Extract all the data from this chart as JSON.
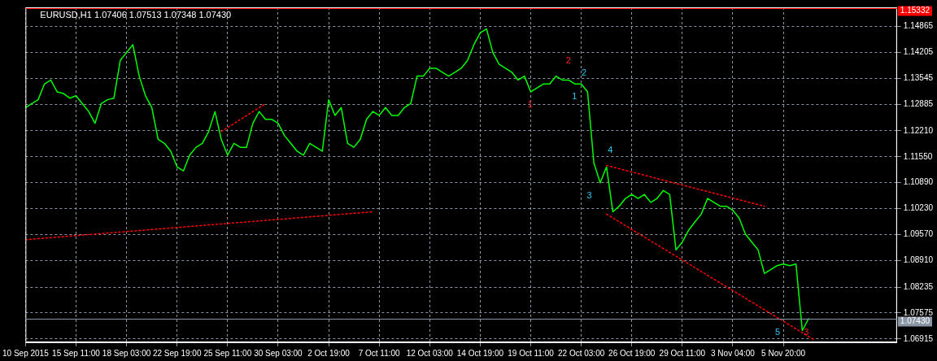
{
  "chart_data": {
    "type": "line",
    "title": "EURUSD,H1 1.07406 1.07513 1.07348 1.07430",
    "categories": [
      "10 Sep 2015",
      null,
      null,
      null,
      null,
      null,
      null,
      null,
      "15 Sep 11:00",
      null,
      null,
      null,
      null,
      null,
      null,
      null,
      "18 Sep 03:00",
      null,
      null,
      null,
      null,
      null,
      null,
      null,
      "22 Sep 19:00",
      null,
      null,
      null,
      null,
      null,
      null,
      null,
      "25 Sep 11:00",
      null,
      null,
      null,
      null,
      null,
      null,
      null,
      "30 Sep 03:00",
      null,
      null,
      null,
      null,
      null,
      null,
      null,
      "2 Oct 19:00",
      null,
      null,
      null,
      null,
      null,
      null,
      null,
      "7 Oct 11:00",
      null,
      null,
      null,
      null,
      null,
      null,
      null,
      "12 Oct 03:00",
      null,
      null,
      null,
      null,
      null,
      null,
      null,
      "14 Oct 19:00",
      null,
      null,
      null,
      null,
      null,
      null,
      null,
      "19 Oct 11:00",
      null,
      null,
      null,
      null,
      null,
      null,
      null,
      "22 Oct 03:00",
      null,
      null,
      null,
      null,
      null,
      null,
      null,
      "26 Oct 19:00",
      null,
      null,
      null,
      null,
      null,
      null,
      null,
      "29 Oct 11:00",
      null,
      null,
      null,
      null,
      null,
      null,
      null,
      "3 Nov 04:00",
      null,
      null,
      null,
      null,
      null,
      null,
      null,
      "5 Nov 20:00",
      null,
      null,
      null,
      null,
      null,
      null,
      null,
      null,
      null,
      null,
      null,
      null,
      null,
      null,
      null,
      null,
      null,
      null
    ],
    "series": [
      {
        "type": "line",
        "color": "#00ff00",
        "line_style": "solid",
        "values": [
          1.128,
          1.129,
          1.13,
          1.134,
          1.135,
          1.132,
          1.1316,
          1.1304,
          1.131,
          1.129,
          1.127,
          1.124,
          1.129,
          1.13,
          1.1304,
          1.14,
          1.142,
          1.144,
          1.136,
          1.131,
          1.128,
          1.1199,
          1.1189,
          1.1169,
          1.1129,
          1.1119,
          1.1159,
          1.1179,
          1.1189,
          1.1219,
          1.127,
          1.1199,
          1.1159,
          1.1189,
          1.1179,
          1.1179,
          1.124,
          1.127,
          1.125,
          1.125,
          1.124,
          1.1209,
          1.1189,
          1.1169,
          1.1159,
          1.1189,
          1.1179,
          1.1169,
          1.13,
          1.126,
          1.128,
          1.1189,
          1.1179,
          1.1199,
          1.125,
          1.127,
          1.126,
          1.128,
          1.126,
          1.126,
          1.128,
          1.129,
          1.136,
          1.136,
          1.138,
          1.138,
          1.137,
          1.136,
          1.137,
          1.138,
          1.14,
          1.144,
          1.147,
          1.148,
          1.142,
          1.139,
          1.138,
          1.137,
          1.135,
          1.136,
          1.132,
          1.133,
          1.134,
          1.134,
          1.136,
          1.135,
          1.135,
          1.134,
          1.134,
          1.132,
          1.1139,
          1.1089,
          1.1129,
          1.1015,
          1.1029,
          1.1049,
          1.1059,
          1.1049,
          1.1059,
          1.1039,
          1.1049,
          1.1069,
          1.1059,
          1.0918,
          1.0938,
          1.0968,
          1.0989,
          1.1009,
          1.1049,
          1.1039,
          1.1029,
          1.1029,
          1.1019,
          1.0999,
          1.0958,
          1.0938,
          1.0918,
          1.0858,
          1.0868,
          1.0878,
          1.0882,
          1.0878,
          1.0882,
          1.0713,
          1.0743,
          null,
          null,
          null,
          null,
          null,
          null,
          null,
          null,
          null,
          null,
          null,
          null,
          null,
          null
        ]
      },
      {
        "type": "line",
        "color": "#ff0000",
        "line_style": "dotted",
        "values": [
          1.0944,
          null,
          null,
          null,
          null,
          null,
          null,
          null,
          null,
          null,
          null,
          null,
          null,
          null,
          null,
          null,
          null,
          null,
          null,
          null,
          null,
          null,
          null,
          null,
          null,
          null,
          null,
          null,
          null,
          null,
          null,
          null,
          null,
          null,
          null,
          null,
          null,
          null,
          null,
          null,
          null,
          null,
          null,
          null,
          null,
          null,
          null,
          null,
          null,
          null,
          null,
          null,
          null,
          null,
          null,
          1.1015,
          null,
          null,
          null,
          null,
          null,
          null,
          null,
          null,
          null,
          null,
          null,
          null,
          null,
          null,
          null,
          null,
          null,
          null,
          null,
          null,
          null,
          null,
          null,
          null,
          null,
          null,
          null,
          null,
          null,
          null,
          null,
          null,
          null,
          null,
          null,
          null,
          null,
          null,
          null,
          null,
          null,
          null,
          null,
          null,
          null,
          null,
          null,
          null,
          null,
          null,
          null,
          null,
          null,
          null,
          null,
          null,
          null,
          null,
          null,
          null,
          null,
          null,
          null,
          null,
          null,
          null,
          null,
          null,
          null,
          null,
          null,
          null,
          null,
          null,
          null,
          null,
          null,
          null,
          null,
          null,
          null,
          null,
          null
        ]
      },
      {
        "type": "line",
        "color": "#ff0000",
        "line_style": "dotted",
        "values": [
          null,
          null,
          null,
          null,
          null,
          null,
          null,
          null,
          null,
          null,
          null,
          null,
          null,
          null,
          null,
          null,
          null,
          null,
          null,
          null,
          null,
          null,
          null,
          null,
          null,
          null,
          null,
          null,
          null,
          null,
          null,
          1.1219,
          null,
          null,
          null,
          null,
          null,
          null,
          1.129,
          null,
          null,
          null,
          null,
          null,
          null,
          null,
          null,
          null,
          null,
          null,
          null,
          null,
          null,
          null,
          null,
          null,
          null,
          null,
          null,
          null,
          null,
          null,
          null,
          null,
          null,
          null,
          null,
          null,
          null,
          null,
          null,
          null,
          null,
          null,
          null,
          null,
          null,
          null,
          null,
          null,
          null,
          null,
          null,
          null,
          null,
          null,
          null,
          null,
          null,
          null,
          null,
          null,
          null,
          null,
          null,
          null,
          null,
          null,
          null,
          null,
          null,
          null,
          null,
          null,
          null,
          null,
          null,
          null,
          null,
          null,
          null,
          null,
          null,
          null,
          null,
          null,
          null,
          null,
          null,
          null,
          null,
          null,
          null,
          null,
          null,
          null,
          null,
          null,
          null,
          null,
          null,
          null,
          null,
          null,
          null,
          null,
          null,
          null,
          null
        ]
      },
      {
        "type": "line",
        "color": "#ff0000",
        "line_style": "dotted",
        "values": [
          null,
          null,
          null,
          null,
          null,
          null,
          null,
          null,
          null,
          null,
          null,
          null,
          null,
          null,
          null,
          null,
          null,
          null,
          null,
          null,
          null,
          null,
          null,
          null,
          null,
          null,
          null,
          null,
          null,
          null,
          null,
          null,
          null,
          null,
          null,
          null,
          null,
          null,
          null,
          null,
          null,
          null,
          null,
          null,
          null,
          null,
          null,
          null,
          null,
          null,
          null,
          null,
          null,
          null,
          null,
          null,
          null,
          null,
          null,
          null,
          null,
          null,
          null,
          null,
          null,
          null,
          null,
          null,
          null,
          null,
          null,
          null,
          null,
          null,
          null,
          null,
          null,
          null,
          null,
          null,
          null,
          null,
          null,
          null,
          null,
          null,
          null,
          null,
          null,
          null,
          null,
          null,
          1.1133,
          null,
          null,
          null,
          null,
          null,
          null,
          null,
          null,
          null,
          null,
          null,
          null,
          null,
          null,
          null,
          null,
          null,
          null,
          null,
          null,
          null,
          null,
          null,
          null,
          1.1029,
          null,
          null,
          null,
          null,
          null,
          null,
          null,
          null,
          null,
          null,
          null,
          null,
          null,
          null,
          null,
          null,
          null,
          null,
          null,
          null,
          null
        ]
      },
      {
        "type": "line",
        "color": "#ff0000",
        "line_style": "dotted",
        "values": [
          null,
          null,
          null,
          null,
          null,
          null,
          null,
          null,
          null,
          null,
          null,
          null,
          null,
          null,
          null,
          null,
          null,
          null,
          null,
          null,
          null,
          null,
          null,
          null,
          null,
          null,
          null,
          null,
          null,
          null,
          null,
          null,
          null,
          null,
          null,
          null,
          null,
          null,
          null,
          null,
          null,
          null,
          null,
          null,
          null,
          null,
          null,
          null,
          null,
          null,
          null,
          null,
          null,
          null,
          null,
          null,
          null,
          null,
          null,
          null,
          null,
          null,
          null,
          null,
          null,
          null,
          null,
          null,
          null,
          null,
          null,
          null,
          null,
          null,
          null,
          null,
          null,
          null,
          null,
          null,
          null,
          null,
          null,
          null,
          null,
          null,
          null,
          null,
          null,
          null,
          null,
          null,
          1.1009,
          null,
          null,
          null,
          null,
          null,
          null,
          null,
          null,
          null,
          null,
          null,
          null,
          null,
          null,
          null,
          null,
          null,
          null,
          null,
          null,
          null,
          null,
          null,
          null,
          null,
          null,
          null,
          null,
          null,
          null,
          null,
          null,
          1.0688,
          null,
          null,
          null,
          null,
          null,
          null,
          null,
          null,
          null,
          null,
          null,
          null,
          null
        ]
      }
    ],
    "annotations": [
      "1",
      "2",
      "3",
      "4",
      "5",
      "1",
      "2",
      "3"
    ],
    "ylim": [
      1.0683,
      1.1535
    ],
    "yticks": [
      1.14865,
      1.14205,
      1.13545,
      1.12885,
      {
        "value": 1.1221,
        "label": "1.12210"
      },
      {
        "value": 1.1155,
        "label": "1.11550"
      },
      {
        "value": 1.1089,
        "label": "1.10890"
      },
      {
        "value": 1.1023,
        "label": "1.10230"
      },
      {
        "value": 1.0957,
        "label": "1.09570"
      },
      {
        "value": 1.0891,
        "label": "1.08910"
      },
      1.08235,
      1.07575,
      1.06915
    ],
    "ref_lines": [
      {
        "axis": "y",
        "value": 1.15332,
        "label": "1.15332",
        "color": "#ff0000"
      },
      {
        "axis": "y",
        "value": 1.0743,
        "label": "1.07430",
        "color": "#8a96a6"
      }
    ],
    "grid": true,
    "legend": false,
    "marker": "none"
  }
}
